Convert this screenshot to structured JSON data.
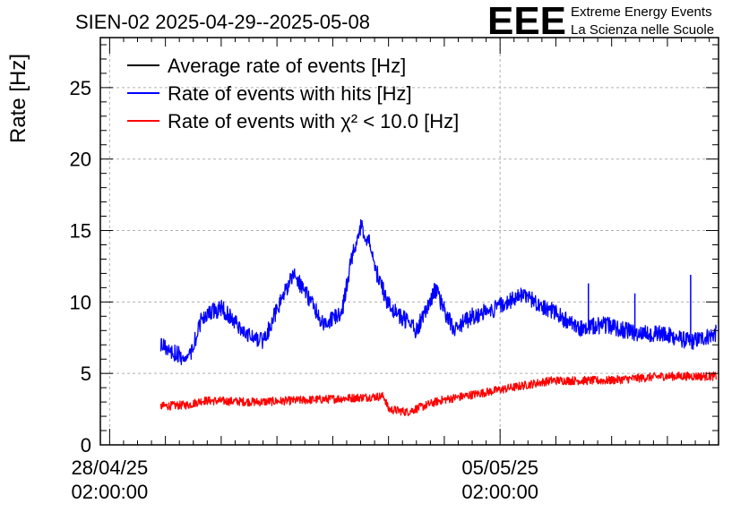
{
  "colors": {
    "average": "#000000",
    "hits": "#0000ff",
    "chi2": "#ff0000",
    "grid": "#b0b0b0",
    "logo": "#1c1cff"
  },
  "logo": {
    "mark": "EEE",
    "line1": "Extreme Energy Events",
    "line2": "La Scienza nelle Scuole"
  },
  "chart_data": {
    "type": "line",
    "title": "SIEN-02 2025-04-29--2025-05-08",
    "xlabel": "",
    "ylabel": "Rate [Hz]",
    "ylim": [
      0,
      28.5
    ],
    "xlim": [
      "2025-04-27 22:00",
      "2025-05-09 00:00"
    ],
    "yticks": [
      0,
      5,
      10,
      15,
      20,
      25
    ],
    "xticks": [
      {
        "date": "2025-04-28 02:00",
        "line1": "28/04/25",
        "line2": "02:00:00"
      },
      {
        "date": "2025-05-05 02:00",
        "line1": "05/05/25",
        "line2": "02:00:00"
      }
    ],
    "grid": true,
    "legend_position": "top-left",
    "series": [
      {
        "key": "average",
        "name": "Average rate of events [Hz]",
        "x": [],
        "values": []
      },
      {
        "key": "hits",
        "name": "Rate of events with hits [Hz]",
        "noise": 0.6,
        "spikes": [
          {
            "date": "2025-05-06 16:00",
            "value": 11.3
          },
          {
            "date": "2025-05-07 12:00",
            "value": 10.6
          },
          {
            "date": "2025-05-08 12:00",
            "value": 11.9
          }
        ],
        "x": [
          "2025-04-29 00:00",
          "2025-04-29 10:00",
          "2025-04-29 13:00",
          "2025-04-29 18:00",
          "2025-04-30 02:00",
          "2025-04-30 12:00",
          "2025-04-30 20:00",
          "2025-05-01 09:00",
          "2025-05-01 13:00",
          "2025-05-01 22:00",
          "2025-05-02 06:00",
          "2025-05-02 10:00",
          "2025-05-02 14:00",
          "2025-05-02 18:00",
          "2025-05-02 21:00",
          "2025-05-03 02:00",
          "2025-05-03 14:00",
          "2025-05-03 22:00",
          "2025-05-04 06:00",
          "2025-05-04 14:00",
          "2025-05-04 22:00",
          "2025-05-05 12:00",
          "2025-05-06 00:00",
          "2025-05-06 12:00",
          "2025-05-06 16:00",
          "2025-05-07 00:00",
          "2025-05-07 12:00",
          "2025-05-08 00:00",
          "2025-05-08 12:00",
          "2025-05-08 23:00"
        ],
        "values": [
          7.0,
          6.1,
          6.5,
          9.0,
          9.6,
          7.8,
          7.2,
          12.0,
          11.0,
          8.5,
          9.3,
          13.0,
          15.3,
          14.0,
          12.0,
          9.8,
          8.0,
          10.9,
          8.0,
          9.0,
          9.4,
          10.5,
          9.4,
          8.1,
          8.3,
          8.4,
          7.8,
          7.8,
          7.2,
          7.8
        ]
      },
      {
        "key": "chi2",
        "name": "Rate of events with χ² < 10.0 [Hz]",
        "noise": 0.3,
        "x": [
          "2025-04-29 00:00",
          "2025-04-29 12:00",
          "2025-04-29 18:00",
          "2025-04-30 18:00",
          "2025-05-02 00:00",
          "2025-05-03 00:00",
          "2025-05-03 02:00",
          "2025-05-03 10:00",
          "2025-05-04 00:00",
          "2025-05-05 00:00",
          "2025-05-06 00:00",
          "2025-05-07 00:00",
          "2025-05-08 00:00",
          "2025-05-08 23:00"
        ],
        "values": [
          2.7,
          2.8,
          3.1,
          3.0,
          3.2,
          3.4,
          2.5,
          2.3,
          3.1,
          3.8,
          4.5,
          4.5,
          4.8,
          4.8
        ]
      }
    ]
  }
}
